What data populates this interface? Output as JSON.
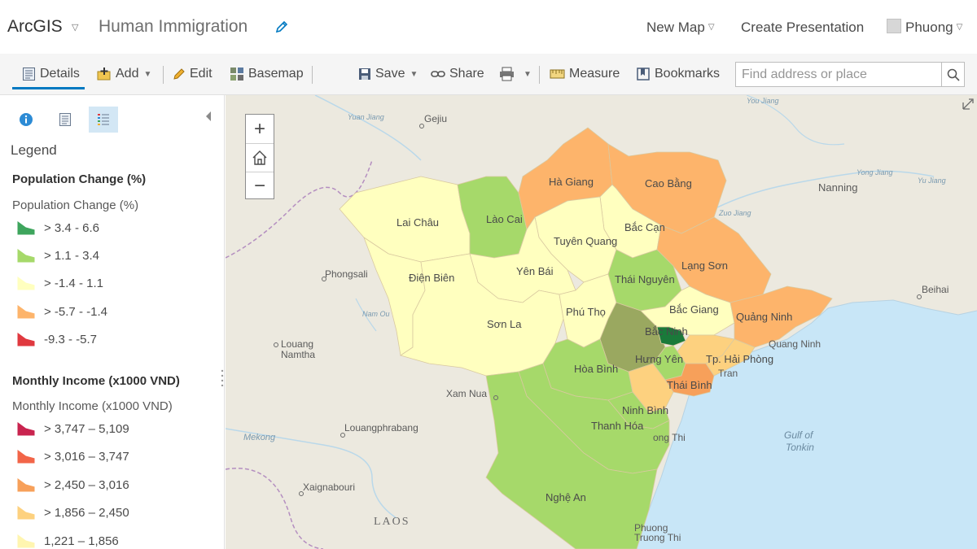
{
  "header": {
    "app_name": "ArcGIS",
    "map_title": "Human Immigration",
    "new_map": "New Map",
    "create_presentation": "Create Presentation",
    "user_name": "Phuong"
  },
  "toolbar": {
    "details": "Details",
    "add": "Add",
    "edit": "Edit",
    "basemap": "Basemap",
    "save": "Save",
    "share": "Share",
    "measure": "Measure",
    "bookmarks": "Bookmarks",
    "search_placeholder": "Find address or place"
  },
  "panel": {
    "legend_label": "Legend",
    "layers": [
      {
        "title": "Population Change (%)",
        "subtitle": "Population Change (%)",
        "classes": [
          {
            "label": "> 3.4 - 6.6",
            "color": "#3ea55d"
          },
          {
            "label": "> 1.1 - 3.4",
            "color": "#a6d96a"
          },
          {
            "label": "> -1.4 - 1.1",
            "color": "#ffffbf"
          },
          {
            "label": "> -5.7 - -1.4",
            "color": "#fdb46b"
          },
          {
            "label": "-9.3 - -5.7",
            "color": "#e0393f"
          }
        ]
      },
      {
        "title": "Monthly Income (x1000 VND)",
        "subtitle": "Monthly Income (x1000 VND)",
        "classes": [
          {
            "label": "> 3,747 – 5,109",
            "color": "#c9244f"
          },
          {
            "label": "> 3,016 – 3,747",
            "color": "#f26548"
          },
          {
            "label": "> 2,450 – 3,016",
            "color": "#f7a05a"
          },
          {
            "label": "> 1,856 – 2,450",
            "color": "#fdd17f"
          },
          {
            "label": "1,221 – 1,856",
            "color": "#fff5b0"
          }
        ]
      }
    ]
  },
  "map": {
    "colors": {
      "land": "#ece9df",
      "sea": "#c8e6f7",
      "increase_strong": "#3ea55d",
      "increase": "#a6d96a",
      "stable": "#ffffbf",
      "decrease": "#fdb46b",
      "dark_green": "#1a7a3a",
      "olive": "#9aa860"
    },
    "provinces": [
      {
        "name": "Lai Châu",
        "class": "stable"
      },
      {
        "name": "Lào Cai",
        "class": "increase"
      },
      {
        "name": "Hà Giang",
        "class": "decrease"
      },
      {
        "name": "Cao Bằng",
        "class": "decrease"
      },
      {
        "name": "Bắc Cạn",
        "class": "stable"
      },
      {
        "name": "Tuyên Quang",
        "class": "stable"
      },
      {
        "name": "Lạng Sơn",
        "class": "decrease"
      },
      {
        "name": "Điện Biên",
        "class": "stable"
      },
      {
        "name": "Yên Bái",
        "class": "stable"
      },
      {
        "name": "Thái Nguyên",
        "class": "increase"
      },
      {
        "name": "Sơn La",
        "class": "stable"
      },
      {
        "name": "Phú Thọ",
        "class": "stable"
      },
      {
        "name": "Bắc Giang",
        "class": "stable"
      },
      {
        "name": "Quảng Ninh",
        "class": "decrease"
      },
      {
        "name": "Bắc Ninh",
        "class": "increase_strong"
      },
      {
        "name": "Hưng Yên",
        "class": "increase"
      },
      {
        "name": "Tp. Hải Phòng",
        "class": "decrease"
      },
      {
        "name": "Hòa Bình",
        "class": "increase"
      },
      {
        "name": "Thái Bình",
        "class": "decrease"
      },
      {
        "name": "Ninh Bình",
        "class": "increase"
      },
      {
        "name": "Thanh Hóa",
        "class": "increase"
      },
      {
        "name": "Nghệ An",
        "class": "increase"
      }
    ],
    "place_labels": {
      "gejiu": "Gejiu",
      "nanning": "Nanning",
      "beihai": "Beihai",
      "phongsali": "Phongsali",
      "louang_namtha_1": "Louang",
      "louang_namtha_2": "Namtha",
      "xam_nua": "Xam Nua",
      "louangphrabang": "Louangphrabang",
      "xaignabouri": "Xaignabouri",
      "laos": "LAOS",
      "gulf_1": "Gulf of",
      "gulf_2": "Tonkin",
      "mekong": "Mekong",
      "tran": "Tran",
      "phuong_thi_1": "Phuong",
      "phuong_thi_2": "Truong Thi",
      "tinh_gia": "ong Thi",
      "quang_ninh_2": "Quang Ninh",
      "yong_jiang": "Yong Jiang",
      "you_jiang": "You Jiang",
      "zuo_jiang": "Zuo Jiang",
      "yu_jiang": "Yu Jiang",
      "yuan_jiang": "Yuan Jiang",
      "nam_ou": "Nam Ou"
    }
  }
}
